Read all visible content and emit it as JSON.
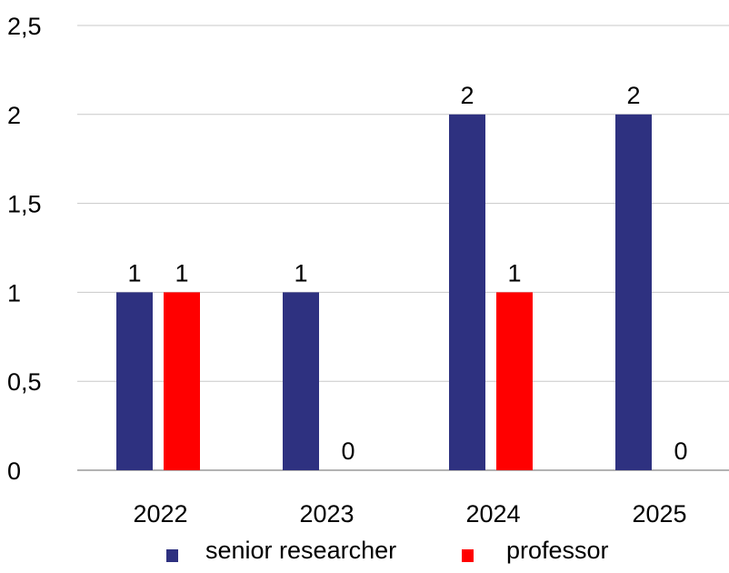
{
  "chart_data": {
    "type": "bar",
    "categories": [
      "2022",
      "2023",
      "2024",
      "2025"
    ],
    "series": [
      {
        "name": "senior researcher",
        "values": [
          1,
          1,
          2,
          2
        ],
        "color": "#2e3180"
      },
      {
        "name": "professor",
        "values": [
          1,
          0,
          1,
          0
        ],
        "color": "#ff0000"
      }
    ],
    "ylim": [
      0,
      2.5
    ],
    "yticks": [
      "0",
      "0,5",
      "1",
      "1,5",
      "2",
      "2,5"
    ],
    "data_labels": [
      [
        "1",
        "1",
        "2",
        "2"
      ],
      [
        "1",
        "0",
        "1",
        "0"
      ]
    ],
    "title": "",
    "xlabel": "",
    "ylabel": "",
    "grid": true,
    "legend_position": "bottom"
  }
}
